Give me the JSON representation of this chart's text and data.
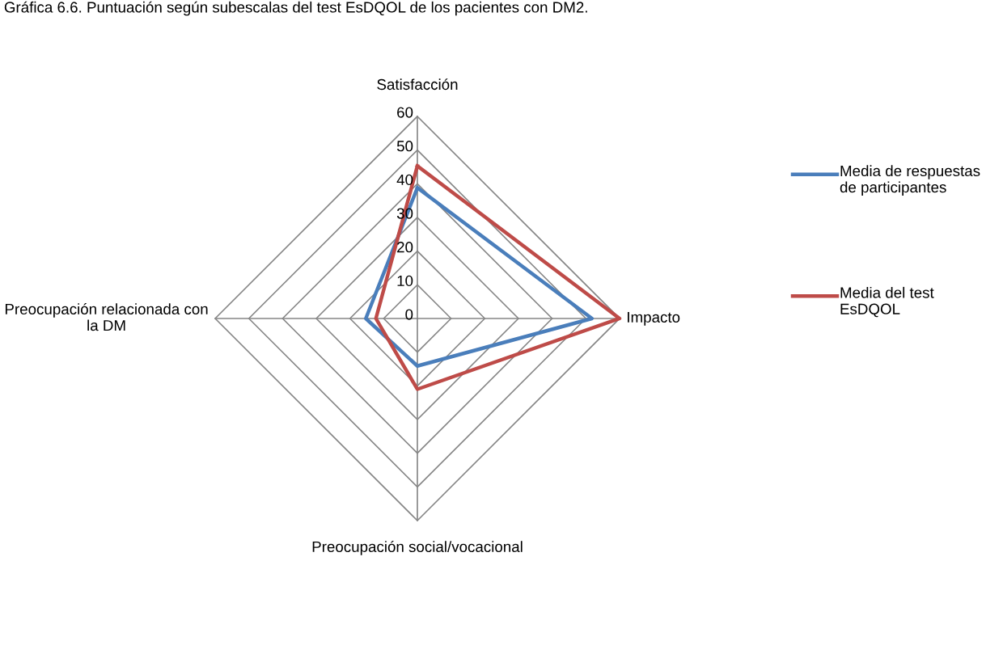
{
  "chart_data": {
    "type": "radar",
    "title": "Gráfica 6.6. Puntuación según subescalas del test EsDQOL de los pacientes con DM2.",
    "categories": [
      "Satisfacción",
      "Impacto",
      "Preocupación social/vocacional",
      "Preocupación relacionada con la DM"
    ],
    "series": [
      {
        "name": "Media de respuestas de participantes",
        "color": "#4a7ebb",
        "values": [
          38.8,
          51.8,
          14.1,
          15.3
        ]
      },
      {
        "name": "Media del test EsDQOL",
        "color": "#be4b48",
        "values": [
          45.3,
          60,
          21,
          12.3
        ]
      }
    ],
    "ylim": [
      0,
      60
    ],
    "yticks": [
      0,
      10,
      20,
      30,
      40,
      50,
      60
    ],
    "legend": "right",
    "grid": true,
    "marker": "none",
    "line_style": "solid"
  }
}
